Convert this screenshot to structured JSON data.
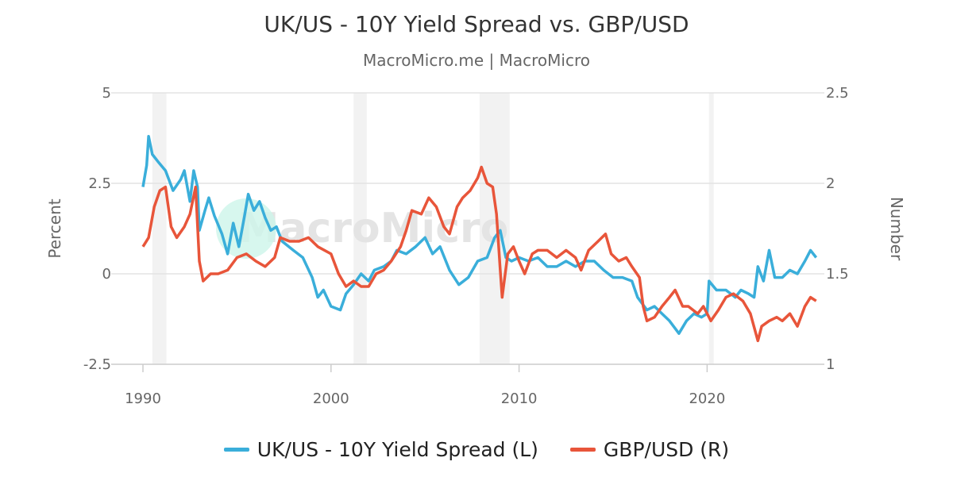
{
  "chart_data": {
    "type": "line",
    "title": "UK/US - 10Y Yield Spread vs. GBP/USD",
    "subtitle": "MacroMicro.me | MacroMicro",
    "watermark": "MacroMicro",
    "xlabel": "",
    "ylabel_left": "Percent",
    "ylabel_right": "Number",
    "xlim": [
      1989.6,
      2026.2
    ],
    "ylim_left": [
      -2.5,
      5
    ],
    "ylim_right": [
      1,
      2.5
    ],
    "x_ticks": [
      "1990",
      "2000",
      "2010",
      "2020"
    ],
    "y_ticks_left": [
      "5",
      "2.5",
      "0",
      "-2.5"
    ],
    "y_ticks_right": [
      "2.5",
      "2",
      "1.5",
      "1"
    ],
    "grid": true,
    "legend_position": "bottom",
    "recession_shading": [
      [
        1990.5,
        1991.25
      ],
      [
        2001.2,
        2001.9
      ],
      [
        2007.9,
        2009.5
      ],
      [
        2020.1,
        2020.35
      ]
    ],
    "series": [
      {
        "name": "UK/US - 10Y Yield Spread (L)",
        "axis": "left",
        "color": "#3AAEDA",
        "x": [
          1990.0,
          1990.2,
          1990.3,
          1990.5,
          1990.8,
          1991.2,
          1991.6,
          1992.0,
          1992.2,
          1992.5,
          1992.7,
          1992.9,
          1993.0,
          1993.3,
          1993.5,
          1993.8,
          1994.2,
          1994.5,
          1994.8,
          1995.1,
          1995.4,
          1995.6,
          1995.9,
          1996.2,
          1996.5,
          1996.8,
          1997.1,
          1997.4,
          1998.0,
          1998.5,
          1999.0,
          1999.3,
          1999.6,
          2000.0,
          2000.5,
          2000.8,
          2001.2,
          2001.6,
          2002.0,
          2002.3,
          2002.8,
          2003.2,
          2003.5,
          2004.0,
          2004.5,
          2005.0,
          2005.4,
          2005.8,
          2006.3,
          2006.8,
          2007.3,
          2007.8,
          2008.3,
          2008.7,
          2009.0,
          2009.3,
          2009.6,
          2010.0,
          2010.5,
          2011.0,
          2011.5,
          2012.0,
          2012.5,
          2013.0,
          2013.5,
          2014.0,
          2014.5,
          2015.0,
          2015.5,
          2016.0,
          2016.3,
          2016.8,
          2017.2,
          2017.6,
          2018.0,
          2018.5,
          2018.9,
          2019.3,
          2019.7,
          2020.0,
          2020.1,
          2020.5,
          2021.0,
          2021.5,
          2021.8,
          2022.2,
          2022.5,
          2022.7,
          2023.0,
          2023.3,
          2023.6,
          2024.0,
          2024.4,
          2024.8,
          2025.2,
          2025.5,
          2025.8
        ],
        "values": [
          2.4,
          3.0,
          3.8,
          3.3,
          3.1,
          2.85,
          2.3,
          2.6,
          2.85,
          2.0,
          2.85,
          2.4,
          1.2,
          1.75,
          2.1,
          1.6,
          1.1,
          0.55,
          1.4,
          0.75,
          1.6,
          2.2,
          1.75,
          2.0,
          1.55,
          1.2,
          1.3,
          0.9,
          0.65,
          0.45,
          -0.1,
          -0.65,
          -0.45,
          -0.9,
          -1.0,
          -0.55,
          -0.3,
          0.0,
          -0.2,
          0.1,
          0.2,
          0.35,
          0.65,
          0.55,
          0.75,
          1.0,
          0.55,
          0.75,
          0.1,
          -0.3,
          -0.1,
          0.35,
          0.45,
          1.0,
          1.2,
          0.45,
          0.35,
          0.45,
          0.35,
          0.45,
          0.2,
          0.2,
          0.35,
          0.2,
          0.35,
          0.35,
          0.1,
          -0.1,
          -0.1,
          -0.2,
          -0.65,
          -1.0,
          -0.9,
          -1.1,
          -1.3,
          -1.65,
          -1.3,
          -1.1,
          -1.2,
          -1.1,
          -0.2,
          -0.45,
          -0.45,
          -0.65,
          -0.45,
          -0.55,
          -0.65,
          0.2,
          -0.2,
          0.65,
          -0.1,
          -0.1,
          0.1,
          0.0,
          0.35,
          0.65,
          0.45
        ]
      },
      {
        "name": "GBP/USD (R)",
        "axis": "right",
        "color": "#E8553A",
        "x": [
          1990.0,
          1990.3,
          1990.6,
          1990.9,
          1991.2,
          1991.5,
          1991.8,
          1992.2,
          1992.5,
          1992.8,
          1993.0,
          1993.2,
          1993.6,
          1994.0,
          1994.5,
          1995.0,
          1995.5,
          1996.0,
          1996.5,
          1997.0,
          1997.3,
          1997.8,
          1998.3,
          1998.8,
          1999.3,
          2000.0,
          2000.4,
          2000.8,
          2001.2,
          2001.6,
          2002.0,
          2002.4,
          2002.8,
          2003.2,
          2003.7,
          2004.0,
          2004.3,
          2004.8,
          2005.2,
          2005.6,
          2006.0,
          2006.3,
          2006.7,
          2007.0,
          2007.4,
          2007.8,
          2008.0,
          2008.3,
          2008.6,
          2008.8,
          2009.0,
          2009.1,
          2009.4,
          2009.7,
          2010.0,
          2010.3,
          2010.7,
          2011.0,
          2011.5,
          2012.0,
          2012.5,
          2013.0,
          2013.3,
          2013.7,
          2014.2,
          2014.6,
          2014.9,
          2015.3,
          2015.7,
          2016.0,
          2016.4,
          2016.6,
          2016.8,
          2017.2,
          2017.6,
          2018.0,
          2018.3,
          2018.7,
          2019.0,
          2019.5,
          2019.8,
          2020.2,
          2020.6,
          2021.0,
          2021.4,
          2021.9,
          2022.3,
          2022.7,
          2022.9,
          2023.3,
          2023.7,
          2024.0,
          2024.4,
          2024.8,
          2025.2,
          2025.5,
          2025.8
        ],
        "values": [
          1.65,
          1.7,
          1.87,
          1.96,
          1.98,
          1.76,
          1.7,
          1.76,
          1.83,
          1.98,
          1.57,
          1.46,
          1.5,
          1.5,
          1.52,
          1.59,
          1.61,
          1.57,
          1.54,
          1.59,
          1.7,
          1.68,
          1.68,
          1.7,
          1.65,
          1.61,
          1.5,
          1.43,
          1.46,
          1.43,
          1.43,
          1.5,
          1.52,
          1.57,
          1.65,
          1.74,
          1.85,
          1.83,
          1.92,
          1.87,
          1.76,
          1.72,
          1.87,
          1.92,
          1.96,
          2.03,
          2.09,
          2.0,
          1.98,
          1.83,
          1.52,
          1.37,
          1.61,
          1.65,
          1.57,
          1.5,
          1.61,
          1.63,
          1.63,
          1.59,
          1.63,
          1.59,
          1.52,
          1.63,
          1.68,
          1.72,
          1.61,
          1.57,
          1.59,
          1.54,
          1.48,
          1.32,
          1.24,
          1.26,
          1.32,
          1.37,
          1.41,
          1.32,
          1.32,
          1.28,
          1.32,
          1.24,
          1.3,
          1.37,
          1.39,
          1.35,
          1.28,
          1.13,
          1.21,
          1.24,
          1.26,
          1.24,
          1.28,
          1.21,
          1.32,
          1.37,
          1.35
        ]
      }
    ]
  }
}
